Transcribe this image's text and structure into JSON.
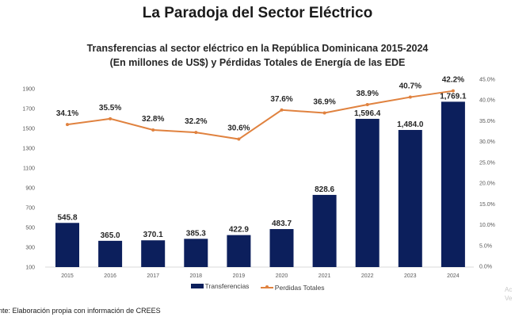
{
  "header": {
    "title": "La Paradoja del Sector Eléctrico",
    "subtitle_line1": "Transferencias al sector eléctrico en la República Dominicana 2015-2024",
    "subtitle_line2": "(En millones de US$) y Pérdidas Totales de Energía de las EDE"
  },
  "chart_data": {
    "type": "bar",
    "title": "Transferencias al sector eléctrico en la República Dominicana 2015-2024 (En millones de US$) y Pérdidas Totales de Energía de las EDE",
    "categories": [
      "2015",
      "2016",
      "2017",
      "2018",
      "2019",
      "2020",
      "2021",
      "2022",
      "2023",
      "2024"
    ],
    "series": [
      {
        "name": "Transferencias",
        "type": "bar",
        "axis": "left",
        "color": "#0c1f5c",
        "values": [
          545.8,
          365.0,
          370.1,
          385.3,
          422.9,
          483.7,
          828.6,
          1596.4,
          1484.0,
          1769.1
        ],
        "labels": [
          "545.8",
          "365.0",
          "370.1",
          "385.3",
          "422.9",
          "483.7",
          "828.6",
          "1,596.4",
          "1,484.0",
          "1,769.1"
        ]
      },
      {
        "name": "Perdidas Totales",
        "type": "line",
        "axis": "right",
        "color": "#e0823f",
        "values": [
          34.1,
          35.5,
          32.8,
          32.2,
          30.6,
          37.6,
          36.9,
          38.9,
          40.7,
          42.2
        ],
        "labels": [
          "34.1%",
          "35.5%",
          "32.8%",
          "32.2%",
          "30.6%",
          "37.6%",
          "36.9%",
          "38.9%",
          "40.7%",
          "42.2%"
        ]
      }
    ],
    "left_axis": {
      "ylim": [
        100,
        1900
      ],
      "ticks": [
        "100",
        "300",
        "500",
        "700",
        "900",
        "1100",
        "1300",
        "1500",
        "1700",
        "1900"
      ]
    },
    "right_axis": {
      "ylim": [
        0,
        45
      ],
      "ticks": [
        "0.0%",
        "5.0%",
        "10.0%",
        "15.0%",
        "20.0%",
        "25.0%",
        "30.0%",
        "35.0%",
        "40.0%",
        "45.0%"
      ]
    },
    "xlabel": "",
    "ylabel": "",
    "grid": false,
    "legend_position": "bottom"
  },
  "legend": {
    "items": [
      "Transferencias",
      "Perdidas Totales"
    ]
  },
  "footer": {
    "source": "nte: Elaboración propia con información de CREES"
  },
  "watermark": {
    "line1": "Ac",
    "line2": "Ve"
  }
}
